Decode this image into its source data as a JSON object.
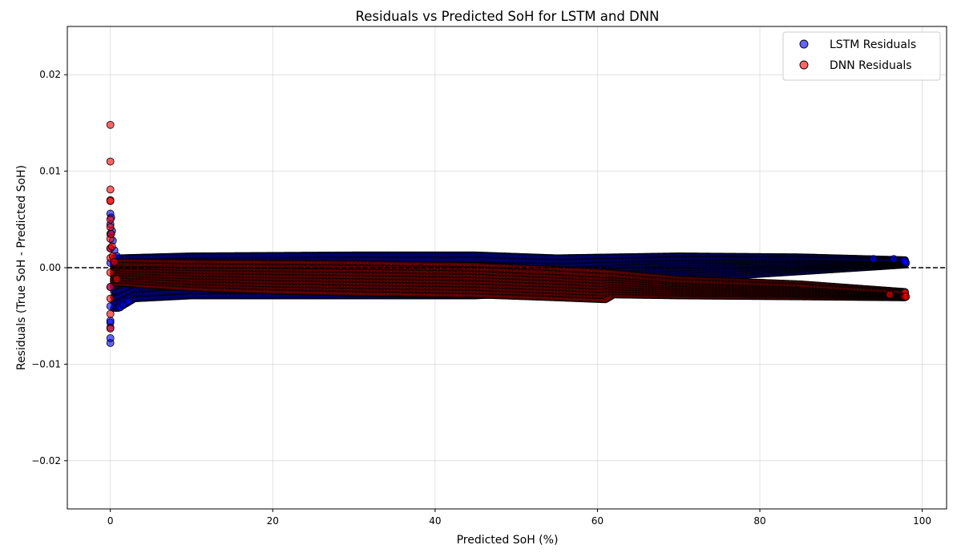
{
  "chart_data": {
    "type": "scatter",
    "title": "Residuals vs Predicted SoH for LSTM and DNN",
    "xlabel": "Predicted SoH (%)",
    "ylabel": "Residuals (True SoH - Predicted SoH)",
    "xlim": [
      -5.3,
      103.0
    ],
    "ylim": [
      -0.025,
      0.025
    ],
    "x_ticks": [
      0,
      20,
      40,
      60,
      80,
      100
    ],
    "x_tick_labels": [
      "0",
      "20",
      "40",
      "60",
      "80",
      "100"
    ],
    "y_ticks": [
      -0.02,
      -0.01,
      0.0,
      0.01,
      0.02
    ],
    "y_tick_labels": [
      "−0.02",
      "−0.01",
      "0.00",
      "0.01",
      "0.02"
    ],
    "grid": true,
    "reference_line": {
      "y": 0,
      "style": "dashed",
      "color": "#000000"
    },
    "legend": {
      "position": "top-right",
      "entries": [
        "LSTM Residuals",
        "DNN Residuals"
      ]
    },
    "series": [
      {
        "name": "LSTM Residuals",
        "color": "#0000ff",
        "edgecolor": "#000000",
        "alpha": 0.6,
        "band": {
          "x_range": [
            0.4,
            98
          ],
          "upper_edge": [
            [
              1,
              0.001
            ],
            [
              10,
              0.0012
            ],
            [
              30,
              0.0013
            ],
            [
              45,
              0.0013
            ],
            [
              55,
              0.001
            ],
            [
              70,
              0.0012
            ],
            [
              85,
              0.0011
            ],
            [
              98,
              0.0008
            ]
          ],
          "lower_edge": [
            [
              1,
              -0.0042
            ],
            [
              3,
              -0.0032
            ],
            [
              10,
              -0.0029
            ],
            [
              30,
              -0.0029
            ],
            [
              45,
              -0.0029
            ],
            [
              55,
              -0.0025
            ],
            [
              70,
              -0.0012
            ],
            [
              85,
              -0.0004
            ],
            [
              98,
              0.0003
            ]
          ]
        },
        "points": [
          [
            0.0,
            -0.0078
          ],
          [
            0.0,
            -0.0073
          ],
          [
            0.0,
            -0.0062
          ],
          [
            0.0,
            -0.0057
          ],
          [
            0.0,
            -0.0055
          ],
          [
            0.0,
            -0.004
          ],
          [
            0.0,
            -0.002
          ],
          [
            0.0,
            0.0005
          ],
          [
            0.0,
            0.002
          ],
          [
            0.0,
            0.0035
          ],
          [
            0.0,
            0.0045
          ],
          [
            0.0,
            0.0056
          ],
          [
            0.1,
            0.0052
          ],
          [
            0.2,
            0.0038
          ],
          [
            0.3,
            0.0028
          ],
          [
            0.5,
            0.0018
          ],
          [
            0.8,
            0.0012
          ],
          [
            1.2,
            -0.0041
          ],
          [
            1.6,
            -0.0038
          ],
          [
            2.2,
            -0.0035
          ],
          [
            97.8,
            0.0007
          ],
          [
            98.0,
            0.0005
          ],
          [
            96.5,
            0.0009
          ],
          [
            94.0,
            0.0009
          ]
        ]
      },
      {
        "name": "DNN Residuals",
        "color": "#ff0000",
        "edgecolor": "#000000",
        "alpha": 0.6,
        "band": {
          "x_range": [
            0.4,
            98
          ],
          "upper_edge": [
            [
              1,
              0.0006
            ],
            [
              10,
              0.0005
            ],
            [
              30,
              0.0004
            ],
            [
              45,
              0.0002
            ],
            [
              55,
              -0.0002
            ],
            [
              61,
              -0.0005
            ],
            [
              70,
              -0.0012
            ],
            [
              85,
              -0.0017
            ],
            [
              98,
              -0.0025
            ]
          ],
          "lower_edge": [
            [
              1,
              -0.0016
            ],
            [
              10,
              -0.0021
            ],
            [
              20,
              -0.0024
            ],
            [
              30,
              -0.0026
            ],
            [
              45,
              -0.0028
            ],
            [
              55,
              -0.0031
            ],
            [
              61,
              -0.0033
            ],
            [
              62,
              -0.0028
            ],
            [
              70,
              -0.0029
            ],
            [
              85,
              -0.003
            ],
            [
              98,
              -0.0031
            ]
          ]
        },
        "points": [
          [
            0.0,
            0.0148
          ],
          [
            0.0,
            0.011
          ],
          [
            0.0,
            0.0081
          ],
          [
            0.0,
            0.007
          ],
          [
            0.0,
            0.0069
          ],
          [
            0.0,
            0.005
          ],
          [
            0.0,
            0.0042
          ],
          [
            0.0,
            0.003
          ],
          [
            0.0,
            0.002
          ],
          [
            0.0,
            0.001
          ],
          [
            0.0,
            -0.0005
          ],
          [
            0.0,
            -0.002
          ],
          [
            0.0,
            -0.0032
          ],
          [
            0.0,
            -0.0048
          ],
          [
            0.0,
            -0.0063
          ],
          [
            0.1,
            0.0035
          ],
          [
            0.2,
            0.0022
          ],
          [
            0.3,
            0.0012
          ],
          [
            0.5,
            0.0006
          ],
          [
            0.8,
            -0.0012
          ],
          [
            97.8,
            -0.003
          ],
          [
            98.0,
            -0.003
          ],
          [
            96.0,
            -0.0028
          ]
        ]
      }
    ]
  }
}
